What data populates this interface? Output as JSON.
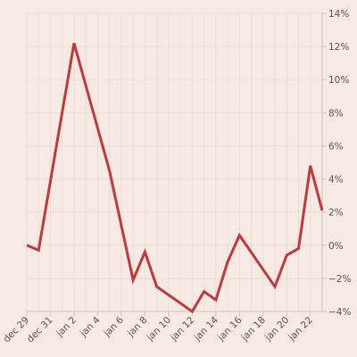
{
  "chart_data": {
    "type": "line",
    "title": "",
    "xlabel": "",
    "ylabel": "",
    "x_ticks": [
      "dec 29",
      "dec 31",
      "jan 2",
      "jan 4",
      "jan 6",
      "jan 8",
      "jan 10",
      "jan 12",
      "jan 14",
      "jan 16",
      "jan 18",
      "jan 20",
      "jan 22"
    ],
    "y_ticks": [
      "14%",
      "12%",
      "10%",
      "8%",
      "6%",
      "4%",
      "2%",
      "0%",
      "−2%",
      "−4%"
    ],
    "y_tick_values": [
      14,
      12,
      10,
      8,
      6,
      4,
      2,
      0,
      -2,
      -4
    ],
    "ylim": [
      -4,
      14
    ],
    "x_range": [
      "2023-12-29",
      "2024-01-23"
    ],
    "y_axis_position": "right",
    "grid": true,
    "legend": "none",
    "series": [
      {
        "color": "#c0393b",
        "points": [
          {
            "date": "2023-12-29",
            "value": 0.0
          },
          {
            "date": "2023-12-30",
            "value": -0.3
          },
          {
            "date": "2024-01-02",
            "value": 12.2
          },
          {
            "date": "2024-01-05",
            "value": 4.5
          },
          {
            "date": "2024-01-07",
            "value": -2.1
          },
          {
            "date": "2024-01-08",
            "value": -0.4
          },
          {
            "date": "2024-01-09",
            "value": -2.5
          },
          {
            "date": "2024-01-12",
            "value": -4.0
          },
          {
            "date": "2024-01-13",
            "value": -2.8
          },
          {
            "date": "2024-01-14",
            "value": -3.3
          },
          {
            "date": "2024-01-15",
            "value": -1.0
          },
          {
            "date": "2024-01-16",
            "value": 0.6
          },
          {
            "date": "2024-01-19",
            "value": -2.5
          },
          {
            "date": "2024-01-20",
            "value": -0.6
          },
          {
            "date": "2024-01-21",
            "value": -0.2
          },
          {
            "date": "2024-01-22",
            "value": 4.8
          },
          {
            "date": "2024-01-23",
            "value": 2.1
          }
        ]
      }
    ]
  }
}
